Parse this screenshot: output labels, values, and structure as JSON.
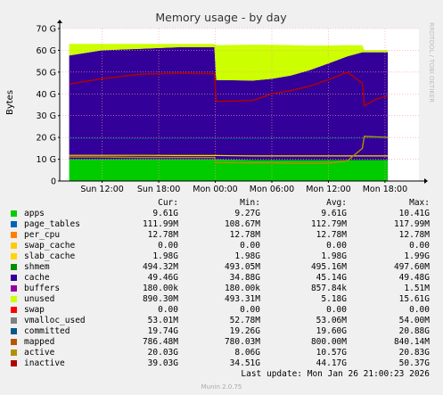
{
  "chart_data": {
    "type": "area",
    "title": "Memory usage - by day",
    "ylabel": "Bytes",
    "ylim": [
      0,
      70
    ],
    "yunit": "G",
    "yticks": [
      "0",
      "10 G",
      "20 G",
      "30 G",
      "40 G",
      "50 G",
      "60 G",
      "70 G"
    ],
    "xticks": [
      "Sun 12:00",
      "Sun 18:00",
      "Mon 00:00",
      "Mon 06:00",
      "Mon 12:00",
      "Mon 18:00"
    ],
    "xtick_hours": [
      0,
      6,
      12,
      18,
      24,
      30
    ],
    "x_hours": [
      -3.5,
      0,
      4,
      8,
      11.9,
      12.1,
      16,
      18,
      20,
      22,
      24,
      26,
      27.6,
      27.8,
      29,
      30.3
    ],
    "stack": {
      "apps": [
        10.0,
        10.0,
        10.0,
        9.9,
        9.9,
        9.9,
        9.6,
        9.6,
        9.6,
        9.6,
        9.6,
        9.6,
        9.6,
        9.6,
        9.6,
        9.6
      ],
      "cache": [
        47.6,
        50.0,
        50.7,
        51.5,
        51.5,
        36.5,
        36.5,
        37.3,
        38.8,
        41.3,
        44.4,
        47.6,
        49.5,
        49.5,
        49.5,
        49.5
      ],
      "unused": [
        5.3,
        2.9,
        2.2,
        1.5,
        1.5,
        16.0,
        16.5,
        15.6,
        14.0,
        11.3,
        8.2,
        5.2,
        3.2,
        1.0,
        1.0,
        1.0
      ]
    },
    "grid": true,
    "grid_color": "#ff9999",
    "watermark": "RRDTOOL / TOBI OETIKER",
    "legend": {
      "headers": [
        "Cur:",
        "Min:",
        "Avg:",
        "Max:"
      ],
      "entries": [
        {
          "name": "apps",
          "color": "#00cc00",
          "cur": "9.61G",
          "min": "9.27G",
          "avg": "9.61G",
          "max": "10.41G"
        },
        {
          "name": "page_tables",
          "color": "#0066b3",
          "cur": "111.99M",
          "min": "108.67M",
          "avg": "112.79M",
          "max": "117.99M"
        },
        {
          "name": "per_cpu",
          "color": "#ff8000",
          "cur": "12.78M",
          "min": "12.78M",
          "avg": "12.78M",
          "max": "12.78M"
        },
        {
          "name": "swap_cache",
          "color": "#ffcc00",
          "cur": "0.00",
          "min": "0.00",
          "avg": "0.00",
          "max": "0.00"
        },
        {
          "name": "slab_cache",
          "color": "#ffd700",
          "cur": "1.98G",
          "min": "1.98G",
          "avg": "1.98G",
          "max": "1.99G"
        },
        {
          "name": "shmem",
          "color": "#008f00",
          "cur": "494.32M",
          "min": "493.05M",
          "avg": "495.16M",
          "max": "497.60M"
        },
        {
          "name": "cache",
          "color": "#330099",
          "cur": "49.46G",
          "min": "34.88G",
          "avg": "45.14G",
          "max": "49.48G"
        },
        {
          "name": "buffers",
          "color": "#990099",
          "cur": "180.00k",
          "min": "180.00k",
          "avg": "857.84k",
          "max": "1.51M"
        },
        {
          "name": "unused",
          "color": "#ccff00",
          "cur": "890.30M",
          "min": "493.31M",
          "avg": "5.18G",
          "max": "15.61G"
        },
        {
          "name": "swap",
          "color": "#ff0000",
          "cur": "0.00",
          "min": "0.00",
          "avg": "0.00",
          "max": "0.00"
        },
        {
          "name": "vmalloc_used",
          "color": "#808080",
          "cur": "53.01M",
          "min": "52.78M",
          "avg": "53.06M",
          "max": "54.00M"
        },
        {
          "name": "committed",
          "color": "#005a8a",
          "cur": "19.74G",
          "min": "19.26G",
          "avg": "19.60G",
          "max": "20.88G"
        },
        {
          "name": "mapped",
          "color": "#b35900",
          "cur": "786.48M",
          "min": "780.03M",
          "avg": "800.00M",
          "max": "840.14M"
        },
        {
          "name": "active",
          "color": "#b38f00",
          "cur": "20.03G",
          "min": "8.06G",
          "avg": "10.57G",
          "max": "20.83G"
        },
        {
          "name": "inactive",
          "color": "#b30000",
          "cur": "39.03G",
          "min": "34.51G",
          "avg": "44.17G",
          "max": "50.37G"
        }
      ]
    },
    "lines": {
      "committed": [
        19.6,
        19.6,
        19.5,
        19.6,
        19.6,
        19.5,
        19.5,
        19.6,
        19.6,
        19.6,
        19.6,
        19.6,
        19.7,
        19.7,
        19.8,
        19.7
      ],
      "active": [
        11.0,
        11.0,
        10.8,
        10.8,
        10.8,
        8.5,
        8.3,
        8.3,
        8.2,
        8.2,
        8.2,
        9.2,
        15.0,
        20.5,
        20.3,
        20.0
      ],
      "inactive": [
        44.5,
        47.0,
        49.0,
        49.5,
        49.3,
        36.5,
        37.0,
        40.0,
        41.5,
        43.5,
        46.5,
        50.0,
        45.0,
        34.5,
        37.5,
        39.0
      ],
      "slab_top": [
        11.8,
        11.8,
        11.8,
        11.7,
        11.7,
        11.7,
        11.5,
        11.5,
        11.5,
        11.5,
        11.5,
        11.5,
        11.5,
        11.5,
        11.5,
        11.5
      ]
    }
  },
  "footer": {
    "last_update": "Last update: Mon Jan 26 21:00:23 2026",
    "generator": "Munin 2.0.75"
  }
}
